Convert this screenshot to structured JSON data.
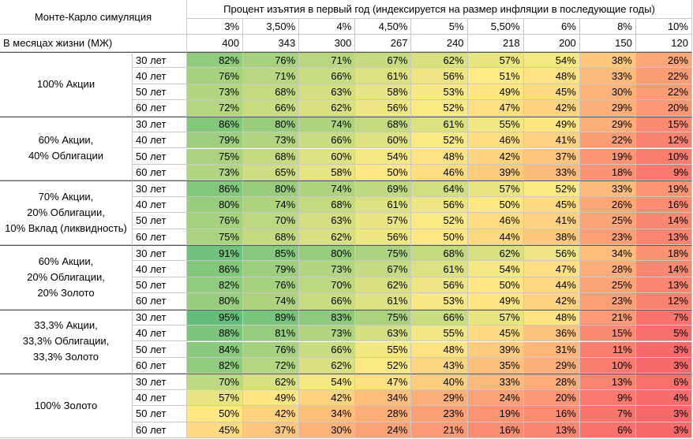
{
  "table": {
    "corner": "Монте-Карло симуляция",
    "header": "Процент изъятия в первый год (индексируется на размер инфляции в последующие годы)",
    "rates": [
      "3%",
      "3,50%",
      "4%",
      "4,50%",
      "5%",
      "5,50%",
      "6%",
      "8%",
      "10%"
    ],
    "months_label": "В месяцах жизни (МЖ)",
    "months": [
      400,
      343,
      300,
      267,
      240,
      218,
      200,
      150,
      120
    ],
    "groups": [
      {
        "label_lines": [
          "100% Акции"
        ],
        "rows": [
          {
            "period": "30 лет",
            "values": [
              "82%",
              "76%",
              "71%",
              "67%",
              "62%",
              "57%",
              "54%",
              "38%",
              "26%"
            ]
          },
          {
            "period": "40 лет",
            "values": [
              "76%",
              "71%",
              "66%",
              "61%",
              "56%",
              "51%",
              "48%",
              "33%",
              "22%"
            ]
          },
          {
            "period": "50 лет",
            "values": [
              "73%",
              "68%",
              "63%",
              "58%",
              "53%",
              "49%",
              "45%",
              "30%",
              "22%"
            ]
          },
          {
            "period": "60 лет",
            "values": [
              "72%",
              "66%",
              "62%",
              "56%",
              "52%",
              "47%",
              "42%",
              "29%",
              "20%"
            ]
          }
        ]
      },
      {
        "label_lines": [
          "60% Акции,",
          "40% Облигации"
        ],
        "rows": [
          {
            "period": "30 лет",
            "values": [
              "86%",
              "80%",
              "74%",
              "68%",
              "61%",
              "55%",
              "49%",
              "29%",
              "15%"
            ]
          },
          {
            "period": "40 лет",
            "values": [
              "79%",
              "73%",
              "66%",
              "60%",
              "52%",
              "46%",
              "41%",
              "22%",
              "12%"
            ]
          },
          {
            "period": "50 лет",
            "values": [
              "75%",
              "68%",
              "60%",
              "54%",
              "48%",
              "42%",
              "37%",
              "19%",
              "10%"
            ]
          },
          {
            "period": "60 лет",
            "values": [
              "73%",
              "65%",
              "58%",
              "50%",
              "46%",
              "39%",
              "33%",
              "18%",
              "9%"
            ]
          }
        ]
      },
      {
        "label_lines": [
          "70% Акции,",
          "20% Облигации,",
          "10% Вклад (ликвидность)"
        ],
        "rows": [
          {
            "period": "30 лет",
            "values": [
              "86%",
              "80%",
              "74%",
              "69%",
              "64%",
              "57%",
              "52%",
              "33%",
              "19%"
            ]
          },
          {
            "period": "40 лет",
            "values": [
              "80%",
              "74%",
              "68%",
              "61%",
              "56%",
              "50%",
              "45%",
              "26%",
              "16%"
            ]
          },
          {
            "period": "50 лет",
            "values": [
              "76%",
              "70%",
              "63%",
              "57%",
              "52%",
              "46%",
              "41%",
              "25%",
              "14%"
            ]
          },
          {
            "period": "60 лет",
            "values": [
              "75%",
              "68%",
              "62%",
              "56%",
              "50%",
              "44%",
              "38%",
              "23%",
              "13%"
            ]
          }
        ]
      },
      {
        "label_lines": [
          "60% Акции,",
          "20% Облигации,",
          "20% Золото"
        ],
        "rows": [
          {
            "period": "30 лет",
            "values": [
              "91%",
              "85%",
              "80%",
              "75%",
              "68%",
              "62%",
              "56%",
              "34%",
              "18%"
            ]
          },
          {
            "period": "40 лет",
            "values": [
              "86%",
              "79%",
              "73%",
              "67%",
              "61%",
              "54%",
              "47%",
              "28%",
              "14%"
            ]
          },
          {
            "period": "50 лет",
            "values": [
              "82%",
              "76%",
              "70%",
              "62%",
              "56%",
              "50%",
              "44%",
              "25%",
              "13%"
            ]
          },
          {
            "period": "60 лет",
            "values": [
              "80%",
              "74%",
              "66%",
              "61%",
              "53%",
              "49%",
              "42%",
              "23%",
              "12%"
            ]
          }
        ]
      },
      {
        "label_lines": [
          "33,3% Акции,",
          "33,3% Облигации,",
          "33,3% Золото"
        ],
        "rows": [
          {
            "period": "30 лет",
            "values": [
              "95%",
              "89%",
              "83%",
              "75%",
              "66%",
              "57%",
              "48%",
              "21%",
              "7%"
            ]
          },
          {
            "period": "40 лет",
            "values": [
              "88%",
              "81%",
              "73%",
              "63%",
              "55%",
              "45%",
              "36%",
              "15%",
              "5%"
            ]
          },
          {
            "period": "50 лет",
            "values": [
              "84%",
              "76%",
              "66%",
              "55%",
              "48%",
              "39%",
              "31%",
              "11%",
              "3%"
            ]
          },
          {
            "period": "60 лет",
            "values": [
              "82%",
              "72%",
              "62%",
              "52%",
              "43%",
              "35%",
              "29%",
              "10%",
              "3%"
            ]
          }
        ]
      },
      {
        "label_lines": [
          "100% Золото"
        ],
        "rows": [
          {
            "period": "30 лет",
            "values": [
              "70%",
              "62%",
              "54%",
              "47%",
              "40%",
              "33%",
              "28%",
              "13%",
              "6%"
            ]
          },
          {
            "period": "40 лет",
            "values": [
              "57%",
              "49%",
              "42%",
              "34%",
              "29%",
              "24%",
              "20%",
              "9%",
              "4%"
            ]
          },
          {
            "period": "50 лет",
            "values": [
              "50%",
              "42%",
              "34%",
              "28%",
              "23%",
              "19%",
              "16%",
              "7%",
              "3%"
            ]
          },
          {
            "period": "60 лет",
            "values": [
              "45%",
              "37%",
              "30%",
              "24%",
              "21%",
              "16%",
              "13%",
              "6%",
              "3%"
            ]
          }
        ]
      }
    ]
  }
}
